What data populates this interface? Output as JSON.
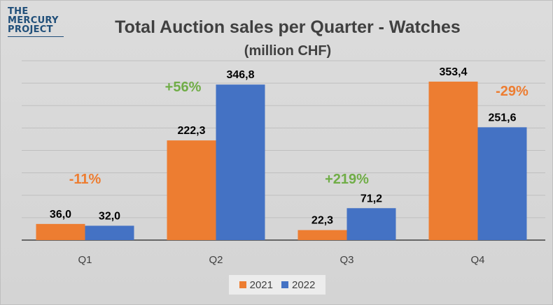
{
  "logo": {
    "line1": "THE",
    "line2": "MERCURY",
    "line3": "PROJECT"
  },
  "chart_data": {
    "type": "bar",
    "title": "Total Auction sales per Quarter - Watches",
    "subtitle": "(million CHF)",
    "categories": [
      "Q1",
      "Q2",
      "Q3",
      "Q4"
    ],
    "series": [
      {
        "name": "2021",
        "color": "#ed7d31",
        "values": [
          36.0,
          222.3,
          22.3,
          353.4
        ],
        "labels": [
          "36,0",
          "222,3",
          "22,3",
          "353,4"
        ]
      },
      {
        "name": "2022",
        "color": "#4472c4",
        "values": [
          32.0,
          346.8,
          71.2,
          251.6
        ],
        "labels": [
          "32,0",
          "346,8",
          "71,2",
          "251,6"
        ]
      }
    ],
    "annotations": [
      {
        "category": "Q1",
        "text": "-11%",
        "color": "#ed7d31"
      },
      {
        "category": "Q2",
        "text": "+56%",
        "color": "#70ad47"
      },
      {
        "category": "Q3",
        "text": "+219%",
        "color": "#70ad47"
      },
      {
        "category": "Q4",
        "text": "-29%",
        "color": "#ed7d31"
      }
    ],
    "ylim": [
      0,
      400
    ],
    "grid": true,
    "legend": "bottom-center"
  }
}
